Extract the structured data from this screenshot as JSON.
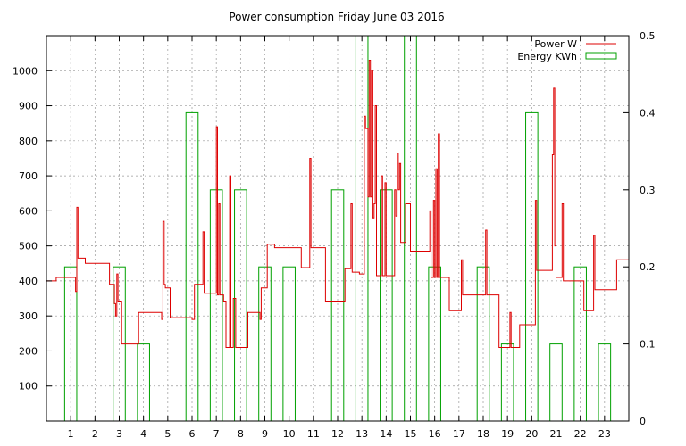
{
  "chart_data": {
    "type": "line",
    "title": "Power consumption Friday June 03 2016",
    "xlabel": "",
    "ylabel": "",
    "xlim": [
      0,
      24
    ],
    "ylim": [
      0,
      1100
    ],
    "y2lim": [
      0,
      0.5
    ],
    "grid": true,
    "legend_position": "top-right",
    "x_ticks": [
      1,
      2,
      3,
      4,
      5,
      6,
      7,
      8,
      9,
      10,
      11,
      12,
      13,
      14,
      15,
      16,
      17,
      18,
      19,
      20,
      21,
      22,
      23
    ],
    "y_ticks": [
      100,
      200,
      300,
      400,
      500,
      600,
      700,
      800,
      900,
      1000
    ],
    "y2_ticks": [
      "0",
      "0.1",
      "0.2",
      "0.3",
      "0.4",
      "0.5"
    ],
    "series": [
      {
        "name": "Power W",
        "color": "#dd0000",
        "axis": "left",
        "type": "step-line",
        "points": [
          [
            0.0,
            400
          ],
          [
            0.4,
            400
          ],
          [
            0.4,
            410
          ],
          [
            1.2,
            410
          ],
          [
            1.2,
            370
          ],
          [
            1.25,
            610
          ],
          [
            1.3,
            465
          ],
          [
            1.6,
            465
          ],
          [
            1.6,
            450
          ],
          [
            2.6,
            450
          ],
          [
            2.6,
            390
          ],
          [
            2.8,
            335
          ],
          [
            2.85,
            300
          ],
          [
            2.9,
            420
          ],
          [
            2.95,
            340
          ],
          [
            3.1,
            340
          ],
          [
            3.1,
            220
          ],
          [
            3.8,
            220
          ],
          [
            3.8,
            310
          ],
          [
            4.7,
            310
          ],
          [
            4.75,
            290
          ],
          [
            4.8,
            570
          ],
          [
            4.85,
            390
          ],
          [
            4.9,
            380
          ],
          [
            5.1,
            380
          ],
          [
            5.1,
            295
          ],
          [
            6.0,
            295
          ],
          [
            6.0,
            290
          ],
          [
            6.1,
            390
          ],
          [
            6.4,
            390
          ],
          [
            6.45,
            540
          ],
          [
            6.5,
            365
          ],
          [
            6.95,
            365
          ],
          [
            7.0,
            840
          ],
          [
            7.05,
            360
          ],
          [
            7.1,
            620
          ],
          [
            7.15,
            360
          ],
          [
            7.3,
            360
          ],
          [
            7.3,
            340
          ],
          [
            7.4,
            210
          ],
          [
            7.5,
            210
          ],
          [
            7.55,
            700
          ],
          [
            7.6,
            210
          ],
          [
            7.7,
            350
          ],
          [
            7.8,
            210
          ],
          [
            8.3,
            210
          ],
          [
            8.3,
            310
          ],
          [
            8.8,
            310
          ],
          [
            8.8,
            290
          ],
          [
            8.85,
            380
          ],
          [
            9.1,
            380
          ],
          [
            9.1,
            505
          ],
          [
            9.4,
            505
          ],
          [
            9.4,
            495
          ],
          [
            10.5,
            495
          ],
          [
            10.5,
            438
          ],
          [
            10.8,
            438
          ],
          [
            10.85,
            750
          ],
          [
            10.9,
            495
          ],
          [
            11.5,
            495
          ],
          [
            11.5,
            340
          ],
          [
            12.3,
            340
          ],
          [
            12.3,
            435
          ],
          [
            12.5,
            435
          ],
          [
            12.55,
            620
          ],
          [
            12.6,
            425
          ],
          [
            12.9,
            425
          ],
          [
            12.9,
            420
          ],
          [
            13.05,
            420
          ],
          [
            13.1,
            870
          ],
          [
            13.15,
            835
          ],
          [
            13.25,
            640
          ],
          [
            13.3,
            1030
          ],
          [
            13.35,
            640
          ],
          [
            13.4,
            1000
          ],
          [
            13.45,
            580
          ],
          [
            13.5,
            620
          ],
          [
            13.55,
            900
          ],
          [
            13.6,
            415
          ],
          [
            13.75,
            415
          ],
          [
            13.8,
            700
          ],
          [
            13.85,
            415
          ],
          [
            13.95,
            680
          ],
          [
            14.0,
            415
          ],
          [
            14.3,
            415
          ],
          [
            14.35,
            660
          ],
          [
            14.4,
            585
          ],
          [
            14.45,
            765
          ],
          [
            14.5,
            660
          ],
          [
            14.55,
            735
          ],
          [
            14.6,
            510
          ],
          [
            14.75,
            510
          ],
          [
            14.8,
            620
          ],
          [
            15.0,
            620
          ],
          [
            15.0,
            485
          ],
          [
            15.75,
            485
          ],
          [
            15.8,
            600
          ],
          [
            15.85,
            410
          ],
          [
            15.95,
            630
          ],
          [
            16.0,
            410
          ],
          [
            16.05,
            720
          ],
          [
            16.1,
            410
          ],
          [
            16.15,
            820
          ],
          [
            16.2,
            410
          ],
          [
            16.6,
            410
          ],
          [
            16.6,
            315
          ],
          [
            17.1,
            315
          ],
          [
            17.1,
            460
          ],
          [
            17.15,
            360
          ],
          [
            18.05,
            360
          ],
          [
            18.1,
            545
          ],
          [
            18.15,
            360
          ],
          [
            18.6,
            360
          ],
          [
            18.65,
            210
          ],
          [
            19.05,
            210
          ],
          [
            19.1,
            310
          ],
          [
            19.15,
            210
          ],
          [
            19.5,
            210
          ],
          [
            19.5,
            275
          ],
          [
            20.1,
            275
          ],
          [
            20.15,
            630
          ],
          [
            20.2,
            430
          ],
          [
            20.8,
            430
          ],
          [
            20.85,
            760
          ],
          [
            20.9,
            950
          ],
          [
            20.95,
            500
          ],
          [
            21.0,
            410
          ],
          [
            21.2,
            410
          ],
          [
            21.25,
            620
          ],
          [
            21.3,
            400
          ],
          [
            22.1,
            400
          ],
          [
            22.15,
            315
          ],
          [
            22.5,
            315
          ],
          [
            22.55,
            530
          ],
          [
            22.6,
            375
          ],
          [
            23.5,
            375
          ],
          [
            23.5,
            460
          ],
          [
            24.0,
            460
          ]
        ]
      },
      {
        "name": "Energy KWh",
        "color": "#00a000",
        "axis": "right",
        "type": "bars",
        "bars": [
          [
            1,
            0.2
          ],
          [
            3,
            0.2
          ],
          [
            4,
            0.1
          ],
          [
            6,
            0.4
          ],
          [
            7,
            0.3
          ],
          [
            8,
            0.3
          ],
          [
            9,
            0.2
          ],
          [
            10,
            0.2
          ],
          [
            12,
            0.3
          ],
          [
            13,
            0.5
          ],
          [
            14,
            0.3
          ],
          [
            15,
            0.5
          ],
          [
            16,
            0.2
          ],
          [
            18,
            0.2
          ],
          [
            19,
            0.1
          ],
          [
            20,
            0.4
          ],
          [
            21,
            0.1
          ],
          [
            22,
            0.2
          ],
          [
            23,
            0.1
          ]
        ]
      }
    ]
  }
}
